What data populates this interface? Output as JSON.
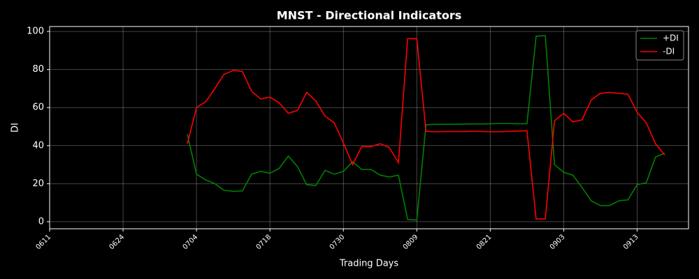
{
  "chart_data": {
    "type": "line",
    "title": "MNST - Directional Indicators",
    "xlabel": "Trading Days",
    "ylabel": "DI",
    "x": [
      15,
      16,
      17,
      18,
      19,
      20,
      21,
      22,
      23,
      24,
      25,
      26,
      27,
      28,
      29,
      30,
      31,
      32,
      33,
      34,
      35,
      36,
      37,
      38,
      39,
      40,
      41,
      42,
      43,
      44,
      45,
      46,
      47,
      48,
      49,
      50,
      51,
      52,
      53,
      54,
      55,
      56,
      57,
      58,
      59,
      60,
      61,
      62,
      63,
      64,
      65,
      66,
      67
    ],
    "series": [
      {
        "name": "+DI",
        "color": "#008000",
        "values": [
          46,
          25,
          22,
          20,
          16.5,
          16,
          16.2,
          25,
          26.5,
          25.5,
          28,
          34.5,
          29,
          19.5,
          19,
          27,
          25,
          26.5,
          31.5,
          27.5,
          27.5,
          24.5,
          23.5,
          24.5,
          1.2,
          0.8,
          51,
          51.2,
          51.2,
          51.2,
          51.3,
          51.4,
          51.4,
          51.5,
          51.6,
          51.6,
          51.5,
          51.5,
          97.5,
          97.8,
          30,
          26,
          24.5,
          18,
          11,
          8.5,
          8.5,
          11,
          11.5,
          19.5,
          20.5,
          34,
          36
        ]
      },
      {
        "name": "-DI",
        "color": "#ff0000",
        "values": [
          41,
          60,
          63,
          70,
          77.5,
          79.5,
          79,
          68.5,
          64.5,
          65.5,
          62.5,
          57,
          58.5,
          68,
          63.5,
          55.5,
          52,
          41.5,
          30,
          39.5,
          39.5,
          41,
          39,
          31,
          96.2,
          96.2,
          47.5,
          47.3,
          47.4,
          47.4,
          47.4,
          47.5,
          47.5,
          47.3,
          47.3,
          47.5,
          47.7,
          47.8,
          1.5,
          1.5,
          53,
          57,
          52.5,
          53.5,
          64,
          67.5,
          68,
          67.5,
          67,
          57.5,
          52,
          41,
          35
        ]
      }
    ],
    "xlim": [
      0,
      69.6
    ],
    "ylim": [
      -3.7,
      102.6
    ],
    "xticks": [
      {
        "value": 0,
        "label": "0611"
      },
      {
        "value": 8,
        "label": "0624"
      },
      {
        "value": 16,
        "label": "0704"
      },
      {
        "value": 24,
        "label": "0718"
      },
      {
        "value": 32,
        "label": "0730"
      },
      {
        "value": 40,
        "label": "0809"
      },
      {
        "value": 48,
        "label": "0821"
      },
      {
        "value": 56,
        "label": "0903"
      },
      {
        "value": 64,
        "label": "0913"
      }
    ],
    "yticks": [
      0,
      20,
      40,
      60,
      80,
      100
    ],
    "grid": true,
    "legend": "upper right"
  }
}
